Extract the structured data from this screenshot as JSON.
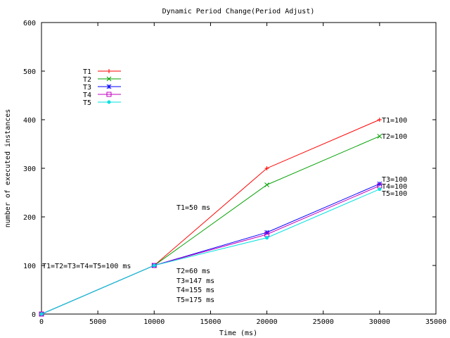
{
  "chart_data": {
    "type": "line",
    "title": "Dynamic Period Change(Period Adjust)",
    "xlabel": "Time (ms)",
    "ylabel": "number of executed instances",
    "xlim": [
      0,
      35000
    ],
    "ylim": [
      0,
      600
    ],
    "x_ticks": [
      "0",
      "5000",
      "10000",
      "15000",
      "20000",
      "25000",
      "30000",
      "35000"
    ],
    "y_ticks": [
      "0",
      "100",
      "200",
      "300",
      "400",
      "500",
      "600"
    ],
    "x": [
      0,
      10000,
      20000,
      30000
    ],
    "grid": false,
    "legend_position": "top-left",
    "series": [
      {
        "name": "T1",
        "color": "#ff0000",
        "marker": "plus",
        "values": [
          0,
          100,
          300,
          400
        ]
      },
      {
        "name": "T2",
        "color": "#00a000",
        "marker": "cross",
        "values": [
          0,
          100,
          266,
          366
        ]
      },
      {
        "name": "T3",
        "color": "#0000ff",
        "marker": "star",
        "values": [
          0,
          100,
          168,
          268
        ]
      },
      {
        "name": "T4",
        "color": "#c000c0",
        "marker": "square",
        "values": [
          0,
          100,
          164,
          264
        ]
      },
      {
        "name": "T5",
        "color": "#00e0e0",
        "marker": "dot",
        "values": [
          0,
          100,
          157,
          257
        ]
      }
    ],
    "annotations": {
      "start": "T1=T2=T3=T4=T5=100 ms",
      "t1_mid": "T1=50 ms",
      "mid_list": [
        "T2=60 ms",
        "T3=147 ms",
        "T4=155 ms",
        "T5=175 ms"
      ],
      "end_t1": "T1=100",
      "end_t2": "T2=100",
      "end_t3": "T3=100",
      "end_t4": "T4=100",
      "end_t5": "T5=100"
    }
  }
}
